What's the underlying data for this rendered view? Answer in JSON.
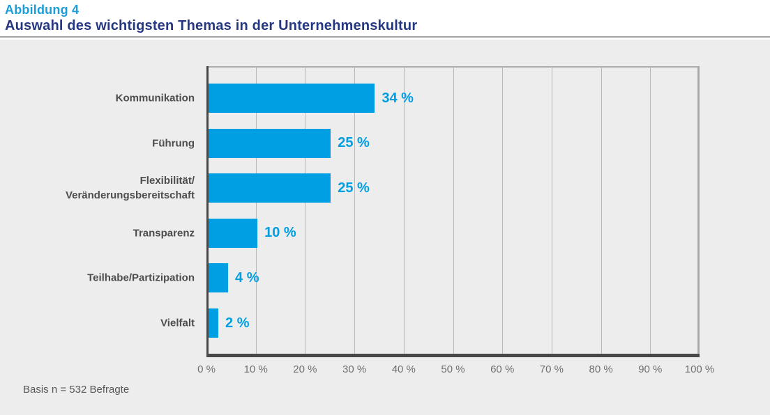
{
  "header": {
    "kicker": "Abbildung 4",
    "title": "Auswahl des wichtigsten Themas in der Unternehmenskultur"
  },
  "colors": {
    "accent_blue": "#009EE2",
    "kicker_blue": "#1B9DDB",
    "title_navy": "#243780",
    "panel_gray": "#EDEDED",
    "axis_dark": "#484848",
    "gridline_gray": "#B8B8B8"
  },
  "chart_data": {
    "type": "bar",
    "orientation": "horizontal",
    "title": "Auswahl des wichtigsten Themas in der Unternehmenskultur",
    "categories": [
      "Kommunikation",
      "Führung",
      "Flexibilität/\nVeränderungsbereitschaft",
      "Transparenz",
      "Teilhabe/Partizipation",
      "Vielfalt"
    ],
    "values": [
      34,
      25,
      25,
      10,
      4,
      2
    ],
    "value_labels": [
      "34 %",
      "25 %",
      "25 %",
      "10 %",
      "4 %",
      "2 %"
    ],
    "x_ticks": [
      "0 %",
      "10 %",
      "20 %",
      "30 %",
      "40 %",
      "50 %",
      "60 %",
      "70 %",
      "80 %",
      "90 %",
      "100 %"
    ],
    "xlim": [
      0,
      100
    ],
    "xlabel": "",
    "ylabel": "",
    "grid": true,
    "legend": false,
    "annotation": "Basis n = 532 Befragte"
  }
}
